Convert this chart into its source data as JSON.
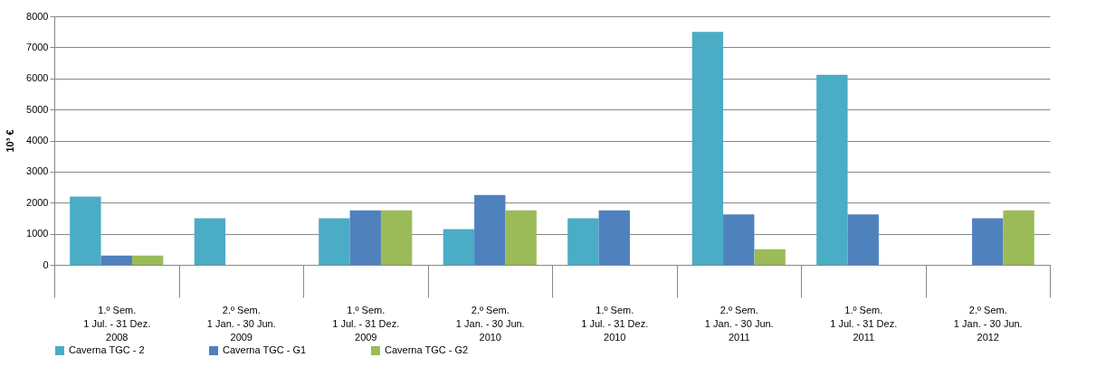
{
  "chart_data": {
    "type": "bar",
    "ylabel": "10³ €",
    "categories": [
      "1.º Sem.\n1 Jul. - 31 Dez.\n2008",
      "2.º Sem.\n1 Jan. - 30 Jun.\n2009",
      "1.º Sem.\n1 Jul. - 31 Dez.\n2009",
      "2.º Sem.\n1 Jan. - 30 Jun.\n2010",
      "1.º Sem.\n1 Jul. - 31 Dez.\n2010",
      "2.º Sem.\n1 Jan. - 30 Jun.\n2011",
      "1.º Sem.\n1 Jul. - 31 Dez.\n2011",
      "2.º Sem.\n1 Jan. - 30 Jun.\n2012"
    ],
    "series": [
      {
        "name": "Caverna TGC - 2",
        "color": "#4bacc6",
        "values": [
          2200,
          1500,
          1500,
          1150,
          1500,
          7500,
          6120,
          null
        ]
      },
      {
        "name": "Caverna TGC - G1",
        "color": "#4f81bd",
        "values": [
          300,
          null,
          1750,
          2250,
          1750,
          1620,
          1620,
          1500
        ]
      },
      {
        "name": "Caverna TGC - G2",
        "color": "#9bbb59",
        "values": [
          300,
          null,
          1750,
          1750,
          null,
          500,
          null,
          1750
        ]
      }
    ],
    "ylim": [
      0,
      8000
    ],
    "yticks": [
      0,
      1000,
      2000,
      3000,
      4000,
      5000,
      6000,
      7000,
      8000
    ],
    "grid": "y",
    "legend": "bottom"
  }
}
